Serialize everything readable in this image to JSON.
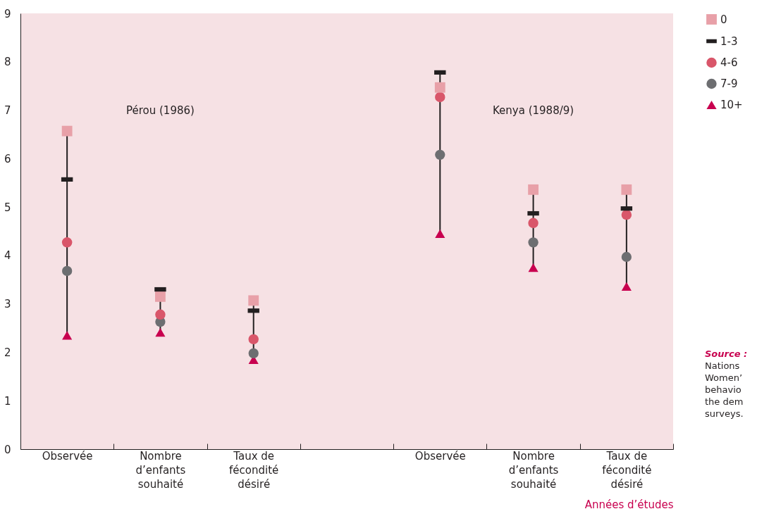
{
  "chart_data": {
    "type": "scatter",
    "xlabel": "Années d’études",
    "categories": [
      "Observée",
      "Nombre d’enfants souhaité",
      "Taux de fécondité désiré",
      null,
      "Observée",
      "Nombre d’enfants souhaité",
      "Taux de fécondité désiré"
    ],
    "series": [
      {
        "name": "10+",
        "color": "#c8004f",
        "marker": "triangle",
        "values": [
          2.35,
          2.41,
          1.85,
          null,
          4.45,
          3.75,
          3.36
        ]
      },
      {
        "name": "7-9",
        "color": "#6d6e71",
        "marker": "circle",
        "values": [
          3.68,
          2.63,
          1.98,
          null,
          6.08,
          4.27,
          3.97
        ]
      },
      {
        "name": "4-6",
        "color": "#d9566a",
        "marker": "circle",
        "values": [
          4.27,
          2.78,
          2.27,
          null,
          7.27,
          4.67,
          4.84
        ]
      },
      {
        "name": "1-3",
        "color": "#231f20",
        "values": [
          5.57,
          3.3,
          2.86,
          null,
          7.78,
          4.87,
          4.97
        ]
      },
      {
        "name": "0",
        "color": "#e8a0a8",
        "marker": "square",
        "values": [
          6.57,
          3.15,
          3.07,
          null,
          7.47,
          5.36,
          5.36
        ]
      }
    ],
    "ylim": [
      0,
      9
    ],
    "yticks": [
      0,
      1,
      2,
      3,
      4,
      5,
      6,
      7,
      8,
      9
    ],
    "grid": false,
    "legend": "top right",
    "annotations": [
      "Pérou (1986)",
      "Kenya (1988/9)",
      "Source :",
      "Nations",
      "Women’",
      "behavio",
      "the dem",
      "surveys."
    ]
  }
}
